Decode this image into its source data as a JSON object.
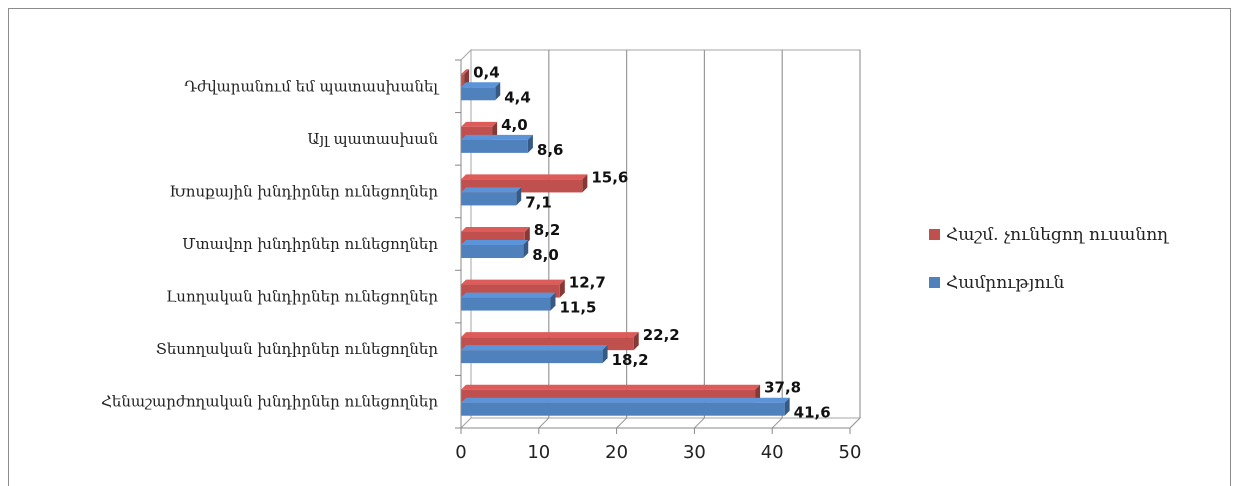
{
  "chart_data": {
    "type": "bar",
    "orientation": "horizontal",
    "categories": [
      "Դժվարանում եմ պատասխանել",
      "Այլ պատասխան",
      "Խոսքային խնդիրներ ունեցողներ",
      "Մտավոր խնդիրներ ունեցողներ",
      "Լսողական խնդիրներ ունեցողներ",
      "Տեսողական խնդիրներ ունեցողներ",
      "Հենաշարժողական խնդիրներ ունեցողներ"
    ],
    "series": [
      {
        "name": "Հաշմ. չունեցող ուսանող",
        "color": "#c0504d",
        "values": [
          0.4,
          4.0,
          15.6,
          8.2,
          12.7,
          22.2,
          37.8
        ],
        "labels": [
          "0,4",
          "4,0",
          "15,6",
          "8,2",
          "12,7",
          "22,2",
          "37,8"
        ]
      },
      {
        "name": "Համրություն",
        "color": "#4f81bd",
        "values": [
          4.4,
          8.6,
          7.1,
          8.0,
          11.5,
          18.2,
          41.6
        ],
        "labels": [
          "4,4",
          "8,6",
          "7,1",
          "8,0",
          "11,5",
          "18,2",
          "41,6"
        ]
      }
    ],
    "xticks": [
      "0",
      "10",
      "20",
      "30",
      "40",
      "50"
    ],
    "xlim": [
      0,
      50
    ],
    "grid": true,
    "legend_position": "right",
    "title": "",
    "xlabel": "",
    "ylabel": ""
  }
}
